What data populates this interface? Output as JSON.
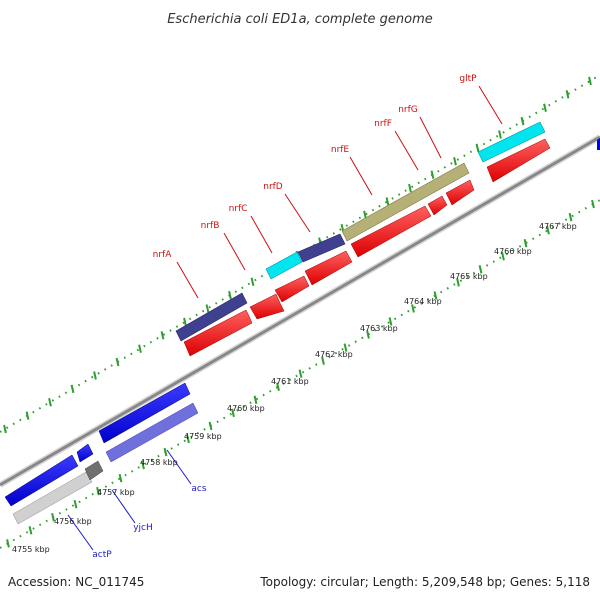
{
  "title": "Escherichia coli ED1a, complete genome",
  "footer": {
    "accession": "Accession: NC_011745",
    "summary": "Topology: circular; Length: 5,209,548 bp; Genes: 5,118"
  },
  "scale_labels": [
    "4755 kbp",
    "4756 kbp",
    "4757 kbp",
    "4758 kbp",
    "4759 kbp",
    "4760 kbp",
    "4761 kbp",
    "4762 kbp",
    "4763 kbp",
    "4764 kbp",
    "4765 kbp",
    "4766 kbp",
    "4767 kbp"
  ],
  "gene_labels_top": [
    "nrfA",
    "nrfB",
    "nrfC",
    "nrfD",
    "nrfE",
    "nrfF",
    "nrfG",
    "gltP"
  ],
  "gene_labels_bottom": [
    "acs",
    "yjcH",
    "actP"
  ],
  "colors": {
    "forward_cds": "#ff0000",
    "reverse_cds": "#0000ee",
    "dark_slate": "#404090",
    "cyan": "#00e5ee",
    "khaki": "#b5b075",
    "lavender": "#7070dd",
    "grey_light": "#d0d0d0",
    "grey_dark": "#707070",
    "backbone": "#999999",
    "dots": "#2e9e2e"
  }
}
